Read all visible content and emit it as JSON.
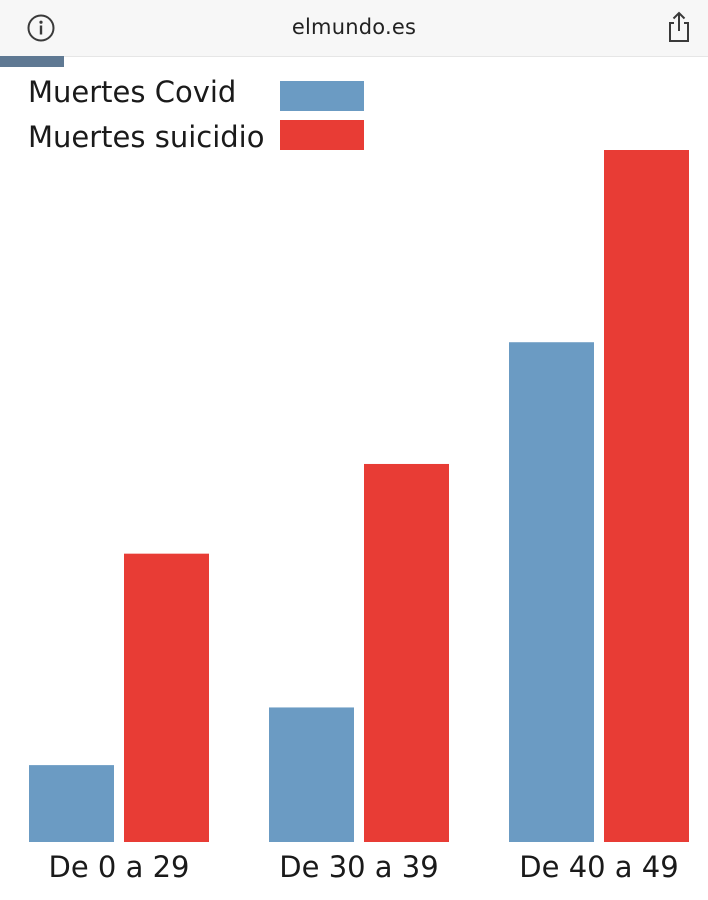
{
  "browser": {
    "domain": "elmundo.es",
    "info_icon": "info-icon",
    "share_icon": "share-icon",
    "load_progress": 0.09
  },
  "chart_data": {
    "type": "bar",
    "categories": [
      "De 0 a 29",
      "De 30 a 39",
      "De 40 a 49"
    ],
    "series": [
      {
        "name": "Muertes Covid",
        "color": "#6b9bc3",
        "values": [
          12,
          21,
          78
        ]
      },
      {
        "name": "Muertes suicidio",
        "color": "#e83c35",
        "values": [
          45,
          59,
          108
        ]
      }
    ],
    "title": "",
    "xlabel": "",
    "ylabel": "",
    "ylim": [
      0,
      108
    ],
    "grid": false,
    "legend_position": "top-left"
  }
}
